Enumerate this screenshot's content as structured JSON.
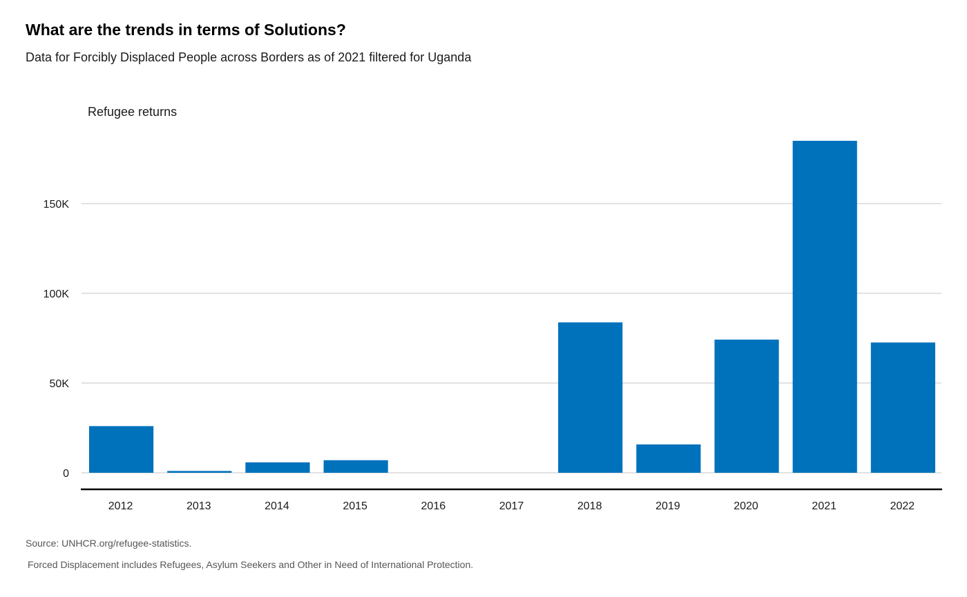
{
  "header": {
    "title": "What are the trends in terms of Solutions?",
    "subtitle": "Data for Forcibly Displaced People across Borders as of 2021 filtered for Uganda"
  },
  "footer": {
    "source": "Source: UNHCR.org/refugee-statistics.",
    "note": "Forced Displacement includes Refugees, Asylum Seekers and Other in Need of International Protection."
  },
  "colors": {
    "bar": "#0072bc",
    "grid": "#d0d0d0",
    "axis": "#000000"
  },
  "chart_data": {
    "type": "bar",
    "title": "What are the trends in terms of Solutions?",
    "xlabel": "",
    "ylabel": "Refugee returns",
    "categories": [
      "2012",
      "2013",
      "2014",
      "2015",
      "2016",
      "2017",
      "2018",
      "2019",
      "2020",
      "2021",
      "2022"
    ],
    "series": [
      {
        "name": "",
        "values": [
          26000,
          1000,
          5800,
          7000,
          0,
          0,
          83800,
          15800,
          74200,
          185000,
          72600
        ]
      }
    ],
    "ylim": [
      0,
      185000
    ],
    "yticks": [
      0,
      50000,
      100000,
      150000
    ],
    "ytick_labels": [
      "0",
      "50K",
      "100K",
      "150K"
    ],
    "grid": true,
    "legend": "none"
  }
}
